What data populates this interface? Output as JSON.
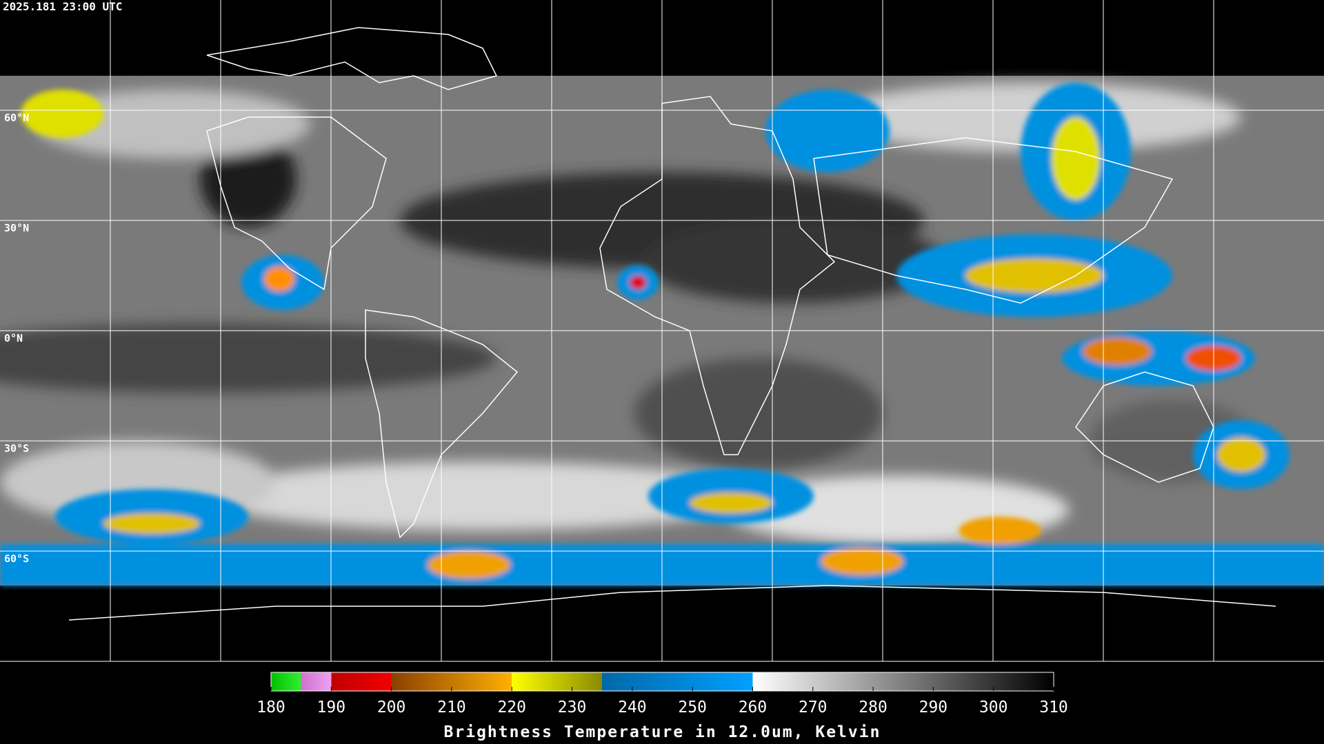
{
  "header": {
    "timestamp": "2025.181 23:00 UTC"
  },
  "map": {
    "latitudes": [
      {
        "value": 60,
        "label": "60°N"
      },
      {
        "value": 30,
        "label": "30°N"
      },
      {
        "value": 0,
        "label": "0°N"
      },
      {
        "value": -30,
        "label": "30°S"
      },
      {
        "value": -60,
        "label": "60°S"
      }
    ]
  },
  "colorbar": {
    "title": "Brightness Temperature in 12.0um, Kelvin",
    "range": [
      180,
      310
    ],
    "ticks": [
      180,
      190,
      200,
      210,
      220,
      230,
      240,
      250,
      260,
      270,
      280,
      290,
      300,
      310
    ],
    "colormap": [
      {
        "value": 180,
        "color": "#00c000"
      },
      {
        "value": 185,
        "color": "#30f030"
      },
      {
        "value": 185,
        "color": "#d070d0"
      },
      {
        "value": 190,
        "color": "#f0a0f0"
      },
      {
        "value": 190,
        "color": "#c00000"
      },
      {
        "value": 200,
        "color": "#f00000"
      },
      {
        "value": 200,
        "color": "#8a4000"
      },
      {
        "value": 220,
        "color": "#ffb000"
      },
      {
        "value": 220,
        "color": "#ffff00"
      },
      {
        "value": 235,
        "color": "#8a8a00"
      },
      {
        "value": 235,
        "color": "#0068a8"
      },
      {
        "value": 260,
        "color": "#00a0ff"
      },
      {
        "value": 260,
        "color": "#ffffff"
      },
      {
        "value": 310,
        "color": "#000000"
      }
    ]
  }
}
